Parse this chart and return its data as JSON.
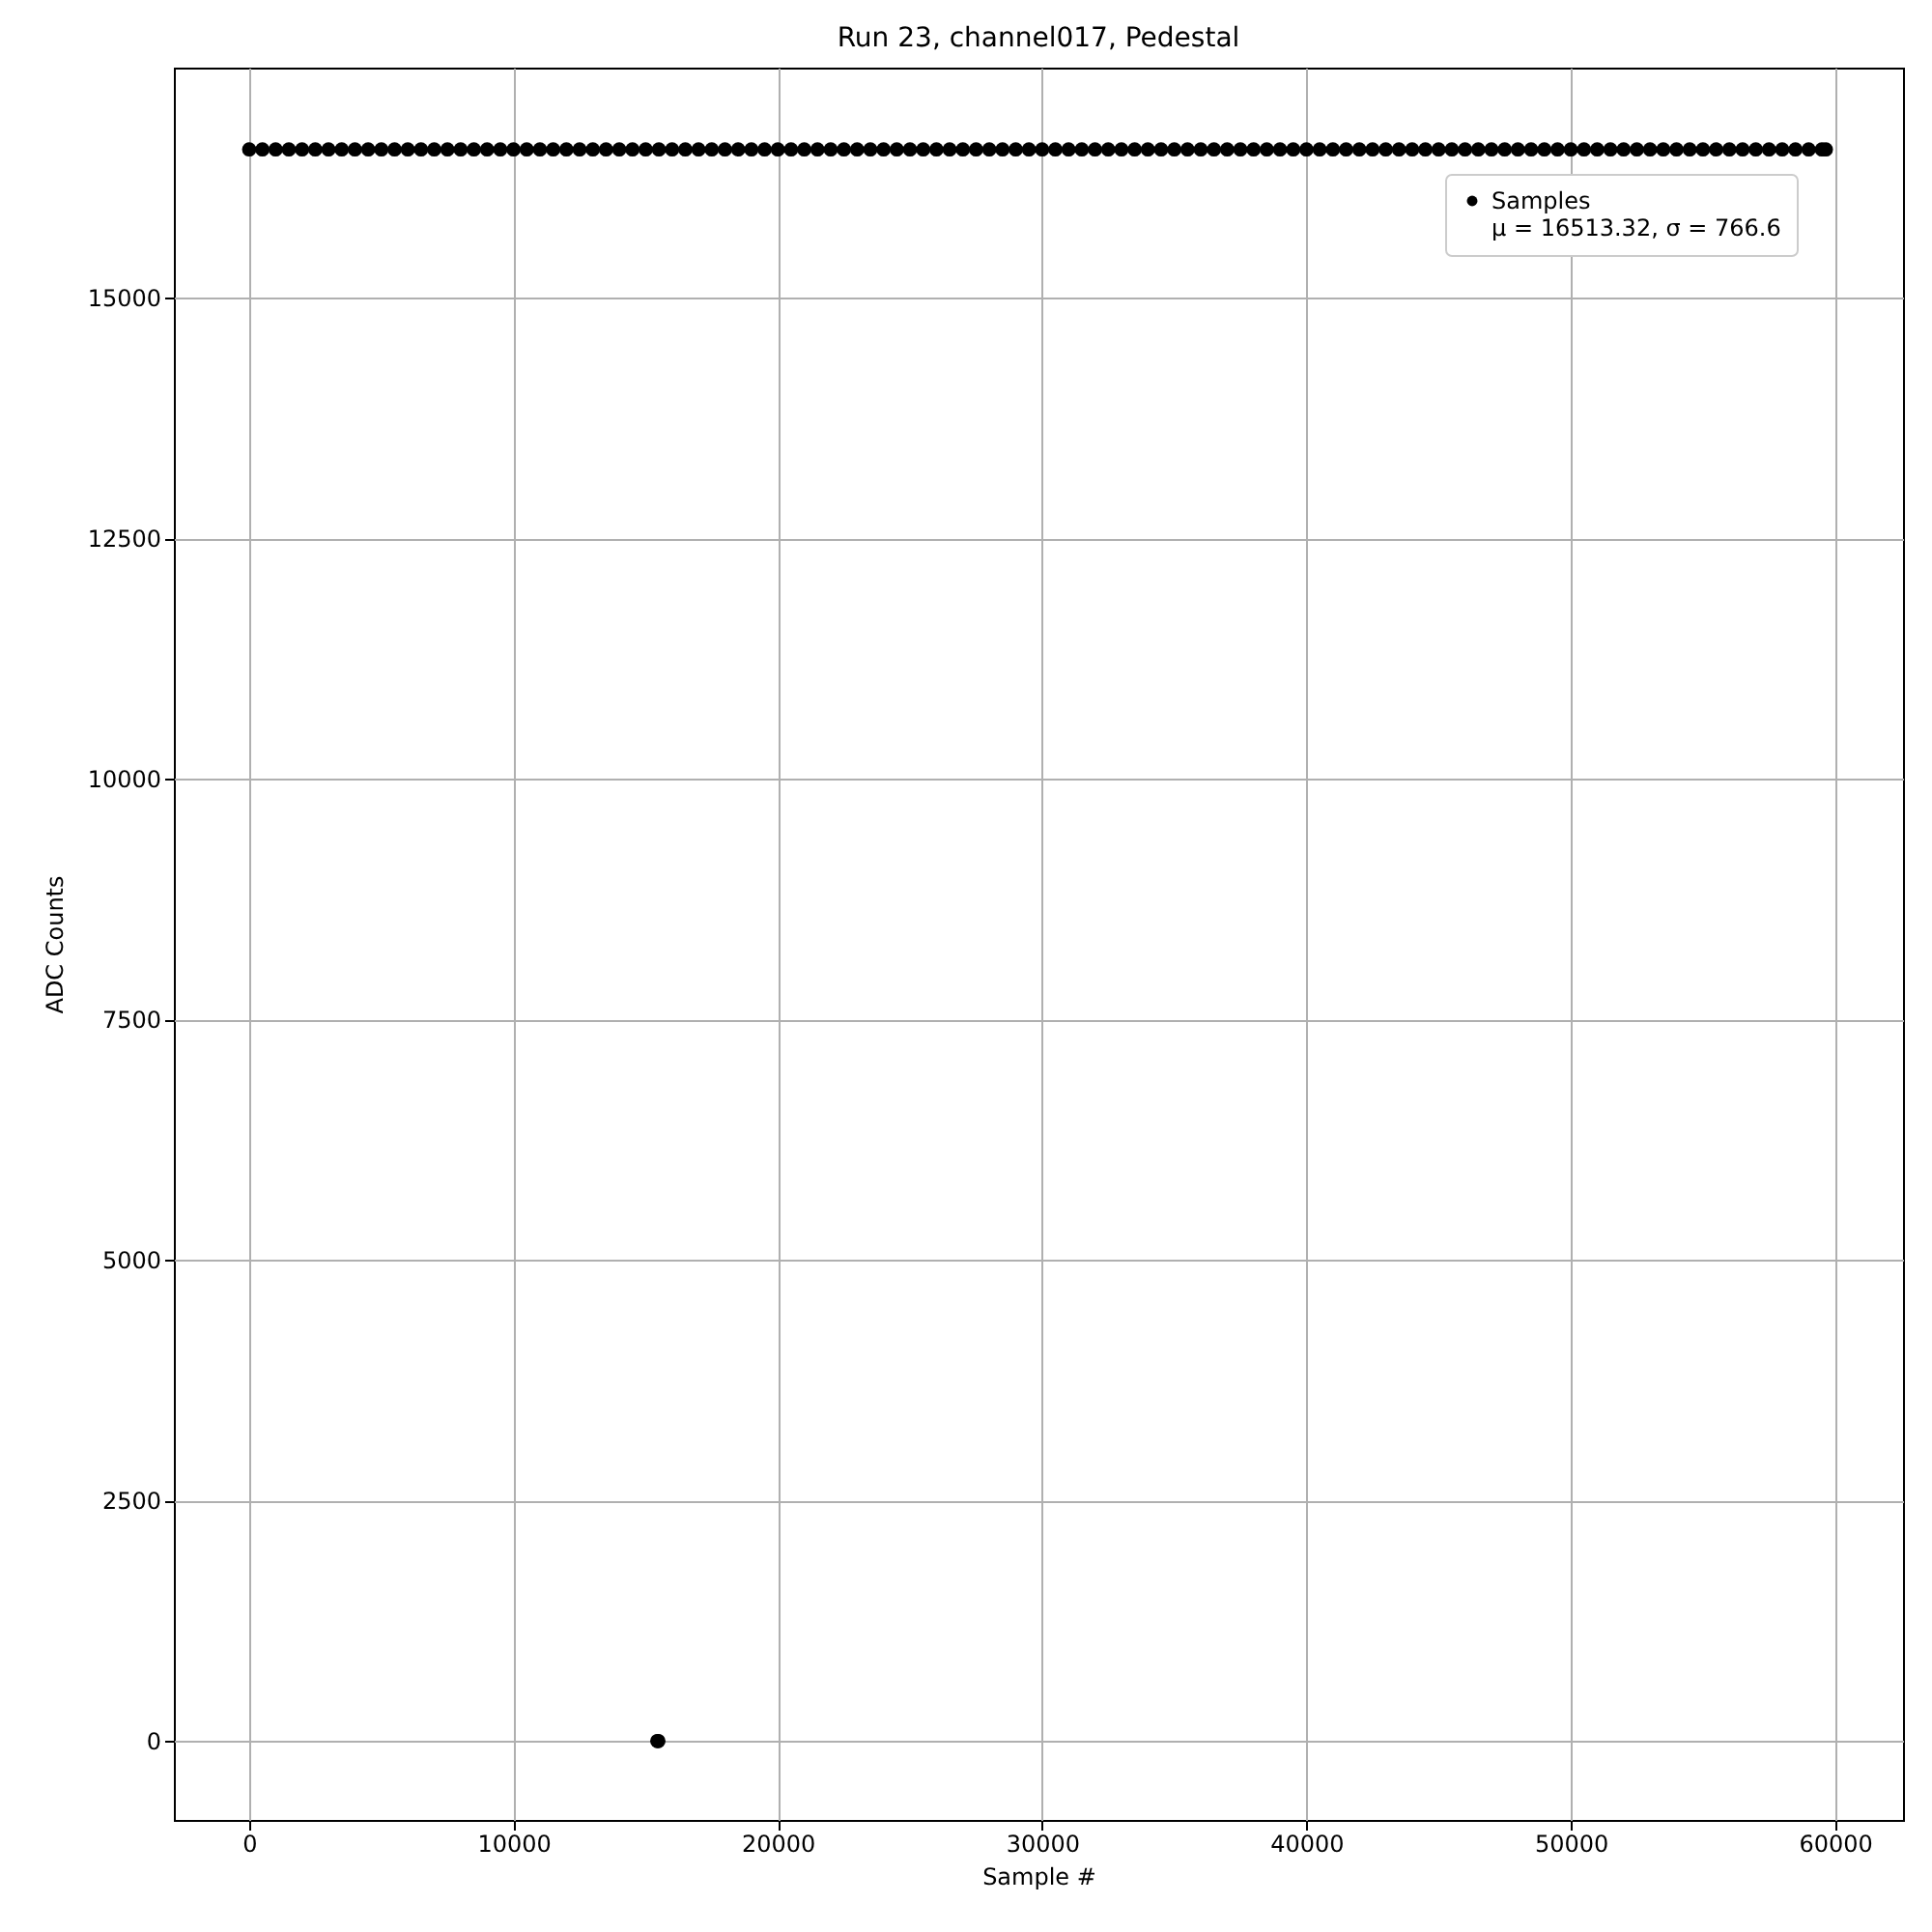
{
  "chart_data": {
    "type": "scatter",
    "title": "Run 23, channel017, Pedestal",
    "xlabel": "Sample #",
    "ylabel": "ADC Counts",
    "xlim": [
      -2850,
      62570
    ],
    "ylim": [
      -820,
      17390
    ],
    "xticks": [
      0,
      10000,
      20000,
      30000,
      40000,
      50000,
      60000
    ],
    "yticks": [
      0,
      2500,
      5000,
      7500,
      10000,
      12500,
      15000
    ],
    "grid": true,
    "legend": "top right",
    "marker": "circle",
    "series": [
      {
        "name": "Samples\nμ = 16513.32, σ = 766.6",
        "color": "#000000",
        "x": [
          0,
          500,
          1000,
          1500,
          2000,
          2500,
          3000,
          3500,
          4000,
          4500,
          5000,
          5500,
          6000,
          6500,
          7000,
          7500,
          8000,
          8500,
          9000,
          9500,
          10000,
          10500,
          11000,
          11500,
          12000,
          12500,
          13000,
          13500,
          14000,
          14500,
          15000,
          15440,
          15480,
          15500,
          16000,
          16500,
          17000,
          17500,
          18000,
          18500,
          19000,
          19500,
          20000,
          20500,
          21000,
          21500,
          22000,
          22500,
          23000,
          23500,
          24000,
          24500,
          25000,
          25500,
          26000,
          26500,
          27000,
          27500,
          28000,
          28500,
          29000,
          29500,
          30000,
          30500,
          31000,
          31500,
          32000,
          32500,
          33000,
          33500,
          34000,
          34500,
          35000,
          35500,
          36000,
          36500,
          37000,
          37500,
          38000,
          38500,
          39000,
          39500,
          40000,
          40500,
          41000,
          41500,
          42000,
          42500,
          43000,
          43500,
          44000,
          44500,
          45000,
          45500,
          46000,
          46500,
          47000,
          47500,
          48000,
          48500,
          49000,
          49500,
          50000,
          50500,
          51000,
          51500,
          52000,
          52500,
          53000,
          53500,
          54000,
          54500,
          55000,
          55500,
          56000,
          56500,
          57000,
          57500,
          58000,
          58500,
          59000,
          59500,
          59650
        ],
        "values": [
          16540,
          16540,
          16540,
          16540,
          16540,
          16540,
          16540,
          16540,
          16540,
          16540,
          16540,
          16540,
          16540,
          16540,
          16540,
          16540,
          16540,
          16540,
          16540,
          16540,
          16540,
          16540,
          16540,
          16540,
          16540,
          16540,
          16540,
          16540,
          16540,
          16540,
          16540,
          0,
          0,
          16540,
          16540,
          16540,
          16540,
          16540,
          16540,
          16540,
          16540,
          16540,
          16540,
          16540,
          16540,
          16540,
          16540,
          16540,
          16540,
          16540,
          16540,
          16540,
          16540,
          16540,
          16540,
          16540,
          16540,
          16540,
          16540,
          16540,
          16540,
          16540,
          16540,
          16540,
          16540,
          16540,
          16540,
          16540,
          16540,
          16540,
          16540,
          16540,
          16540,
          16540,
          16540,
          16540,
          16540,
          16540,
          16540,
          16540,
          16540,
          16540,
          16540,
          16540,
          16540,
          16540,
          16540,
          16540,
          16540,
          16540,
          16540,
          16540,
          16540,
          16540,
          16540,
          16540,
          16540,
          16540,
          16540,
          16540,
          16540,
          16540,
          16540,
          16540,
          16540,
          16540,
          16540,
          16540,
          16540,
          16540,
          16540,
          16540,
          16540,
          16540,
          16540,
          16540,
          16540,
          16540,
          16540,
          16540,
          16540,
          16540,
          16540
        ]
      }
    ]
  }
}
